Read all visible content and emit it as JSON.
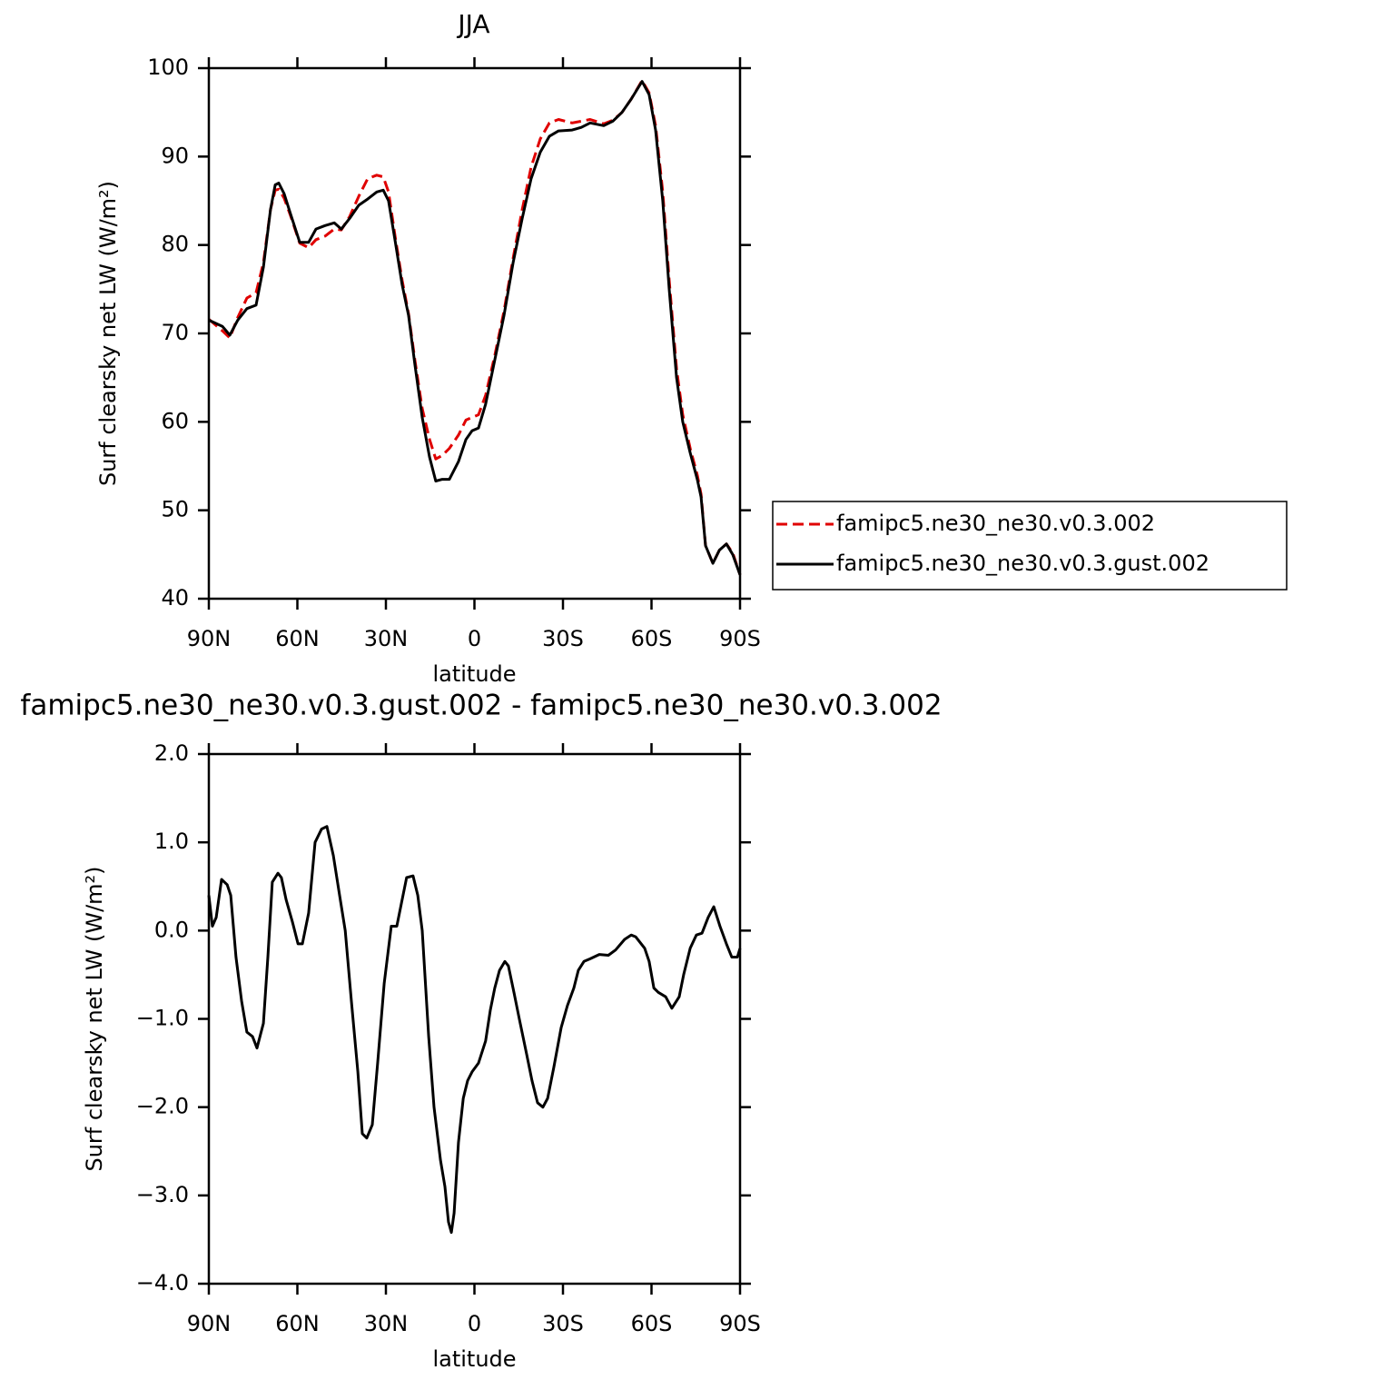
{
  "chart_data": [
    {
      "type": "line",
      "title": "JJA",
      "xlabel": "latitude",
      "ylabel": "Surf clearsky net LW (W/m²)",
      "xlim": [
        90,
        -90
      ],
      "xticks": [
        {
          "value": 90,
          "label": "90N"
        },
        {
          "value": 60,
          "label": "60N"
        },
        {
          "value": 30,
          "label": "30N"
        },
        0,
        {
          "value": -30,
          "label": "30S"
        },
        {
          "value": -60,
          "label": "60S"
        },
        {
          "value": -90,
          "label": "90S"
        }
      ],
      "ylim": [
        40,
        100
      ],
      "yticks": [
        40,
        50,
        60,
        70,
        80,
        90,
        100
      ],
      "series": [
        {
          "name": "famipc5.ne30_ne30.v0.3.002",
          "color": "#e00000",
          "dashed": true,
          "x": [
            90,
            85.4,
            82.9,
            80.2,
            77.1,
            74,
            71.5,
            69.1,
            67.5,
            66.3,
            64.5,
            62.3,
            59.2,
            56.2,
            53.7,
            50.6,
            47.5,
            45.1,
            42.3,
            39.2,
            36.2,
            33.1,
            30.9,
            29.1,
            26.9,
            24.5,
            22.3,
            20.2,
            17.7,
            15.2,
            13.1,
            10.9,
            8.5,
            5.4,
            2.9,
            0.8,
            -1.4,
            -3.8,
            -6.9,
            -10,
            -13.1,
            -16.2,
            -19.2,
            -22.3,
            -25.4,
            -28.5,
            -33.1,
            -36.2,
            -39.2,
            -43.8,
            -46.9,
            -50,
            -53.1,
            -56.8,
            -59.2,
            -61.4,
            -63.8,
            -66,
            -68.5,
            -70.6,
            -73.1,
            -75.5,
            -76.8,
            -78.3,
            -80.8,
            -83,
            -85.4,
            -87.5,
            -90
          ],
          "values": [
            71.6,
            70.3,
            69.5,
            71.8,
            74,
            74.6,
            78,
            84,
            86.2,
            86.3,
            85.3,
            83.3,
            80.2,
            79.7,
            80.6,
            81,
            81.8,
            81.7,
            83.2,
            85.5,
            87.5,
            87.9,
            87.7,
            86,
            81,
            76,
            72.2,
            67,
            61.5,
            58,
            55.8,
            56.2,
            57,
            58.5,
            60.2,
            60.5,
            60.8,
            63,
            67.5,
            72.5,
            78.5,
            84,
            88.8,
            92,
            93.8,
            94.2,
            93.8,
            94,
            94.2,
            93.7,
            94.1,
            95,
            96.5,
            98.6,
            97.2,
            93.5,
            86,
            76,
            66,
            60.8,
            57,
            54,
            51.8,
            46,
            44,
            45.5,
            46.2,
            45.2,
            42.7
          ]
        },
        {
          "name": "famipc5.ne30_ne30.v0.3.gust.002",
          "color": "#000000",
          "dashed": false,
          "x": [
            90,
            85.4,
            82.9,
            80.2,
            77.1,
            74,
            71.5,
            69.1,
            67.5,
            66.3,
            64.5,
            62.3,
            59.2,
            56.2,
            53.7,
            50.6,
            47.5,
            45.1,
            42.3,
            39.2,
            36.2,
            33.1,
            30.9,
            29.1,
            26.9,
            24.5,
            22.3,
            20.2,
            17.7,
            15.2,
            13.1,
            10.9,
            8.5,
            5.4,
            2.9,
            0.8,
            -1.4,
            -3.8,
            -6.9,
            -10,
            -13.1,
            -16.2,
            -19.2,
            -22.3,
            -25.4,
            -28.5,
            -33.1,
            -36.2,
            -39.2,
            -43.8,
            -46.9,
            -50,
            -53.1,
            -56.8,
            -59.2,
            -61.4,
            -63.8,
            -66,
            -68.5,
            -70.6,
            -73.1,
            -75.5,
            -76.8,
            -78.3,
            -80.8,
            -83,
            -85.4,
            -87.5,
            -90
          ],
          "values": [
            71.5,
            70.8,
            69.8,
            71.5,
            72.8,
            73.2,
            77.5,
            84,
            86.8,
            87,
            85.8,
            83.5,
            80.3,
            80.3,
            81.8,
            82.2,
            82.5,
            81.8,
            83,
            84.5,
            85.2,
            86,
            86.2,
            85,
            80.5,
            75.5,
            72,
            66.5,
            60.5,
            56,
            53.3,
            53.5,
            53.5,
            55.5,
            58,
            59,
            59.3,
            62,
            67,
            72,
            78,
            83,
            87.5,
            90.5,
            92.3,
            92.9,
            93,
            93.3,
            93.8,
            93.5,
            94,
            95,
            96.5,
            98.5,
            97,
            93,
            85,
            75,
            65,
            60,
            56.5,
            53.5,
            51.5,
            46,
            44,
            45.5,
            46.2,
            45,
            42.7
          ]
        }
      ]
    },
    {
      "type": "line",
      "title": "famipc5.ne30_ne30.v0.3.gust.002 - famipc5.ne30_ne30.v0.3.002",
      "xlabel": "latitude",
      "ylabel": "Surf clearsky net LW (W/m²)",
      "xlim": [
        90,
        -90
      ],
      "xticks": [
        {
          "value": 90,
          "label": "90N"
        },
        {
          "value": 60,
          "label": "60N"
        },
        {
          "value": 30,
          "label": "30N"
        },
        0,
        {
          "value": -30,
          "label": "30S"
        },
        {
          "value": -60,
          "label": "60S"
        },
        {
          "value": -90,
          "label": "90S"
        }
      ],
      "ylim": [
        -4,
        2
      ],
      "yticks": [
        {
          "value": -4,
          "label": "−4.0"
        },
        {
          "value": -3,
          "label": "−3.0"
        },
        {
          "value": -2,
          "label": "−2.0"
        },
        {
          "value": -1,
          "label": "−1.0"
        },
        {
          "value": 0,
          "label": "0.0"
        },
        {
          "value": 1,
          "label": "1.0"
        },
        {
          "value": 2,
          "label": "2.0"
        }
      ],
      "series": [
        {
          "color": "#000000",
          "dashed": false,
          "x": [
            90,
            88.8,
            87.5,
            85.7,
            83.8,
            82.6,
            80.8,
            78.9,
            77.1,
            75.2,
            73.7,
            71.5,
            70,
            68.5,
            66.6,
            65.4,
            63.8,
            61.7,
            59.8,
            58.3,
            56.2,
            54,
            51.8,
            50,
            47.8,
            45.7,
            43.8,
            41.7,
            39.5,
            38,
            36.5,
            34.6,
            32.8,
            30.6,
            28.2,
            26.3,
            24.8,
            23,
            20.8,
            19.2,
            17.7,
            15.5,
            13.7,
            11.5,
            10,
            8.8,
            7.8,
            6.9,
            5.4,
            3.8,
            2.3,
            0.8,
            -1.4,
            -3.8,
            -5.4,
            -6.9,
            -8.5,
            -10.3,
            -11.5,
            -13.4,
            -15.2,
            -17.7,
            -19.5,
            -21.4,
            -23.2,
            -24.8,
            -26.9,
            -29.4,
            -31.5,
            -33.7,
            -35.2,
            -37.1,
            -39.2,
            -42.3,
            -45.4,
            -47.8,
            -50.9,
            -53.1,
            -54.6,
            -57.7,
            -59.2,
            -60.8,
            -62.3,
            -64.8,
            -66.9,
            -69.4,
            -70.9,
            -73.1,
            -75.2,
            -77.1,
            -79.2,
            -81.1,
            -83.2,
            -85.4,
            -87.2,
            -89.1,
            -90
          ],
          "values": [
            0.4,
            0.05,
            0.15,
            0.58,
            0.52,
            0.4,
            -0.3,
            -0.8,
            -1.15,
            -1.2,
            -1.33,
            -1.05,
            -0.3,
            0.55,
            0.65,
            0.6,
            0.35,
            0.1,
            -0.15,
            -0.15,
            0.2,
            1.0,
            1.15,
            1.18,
            0.85,
            0.4,
            0.0,
            -0.8,
            -1.6,
            -2.3,
            -2.35,
            -2.2,
            -1.5,
            -0.6,
            0.05,
            0.05,
            0.3,
            0.6,
            0.62,
            0.4,
            0.0,
            -1.2,
            -2.0,
            -2.6,
            -2.9,
            -3.3,
            -3.42,
            -3.2,
            -2.4,
            -1.9,
            -1.7,
            -1.6,
            -1.5,
            -1.25,
            -0.9,
            -0.65,
            -0.45,
            -0.35,
            -0.4,
            -0.7,
            -1.0,
            -1.4,
            -1.7,
            -1.95,
            -2.0,
            -1.9,
            -1.55,
            -1.1,
            -0.85,
            -0.65,
            -0.45,
            -0.35,
            -0.32,
            -0.27,
            -0.28,
            -0.22,
            -0.1,
            -0.05,
            -0.07,
            -0.2,
            -0.35,
            -0.65,
            -0.7,
            -0.75,
            -0.88,
            -0.75,
            -0.5,
            -0.2,
            -0.05,
            -0.03,
            0.15,
            0.27,
            0.05,
            -0.15,
            -0.3,
            -0.3,
            -0.2
          ]
        }
      ]
    }
  ]
}
